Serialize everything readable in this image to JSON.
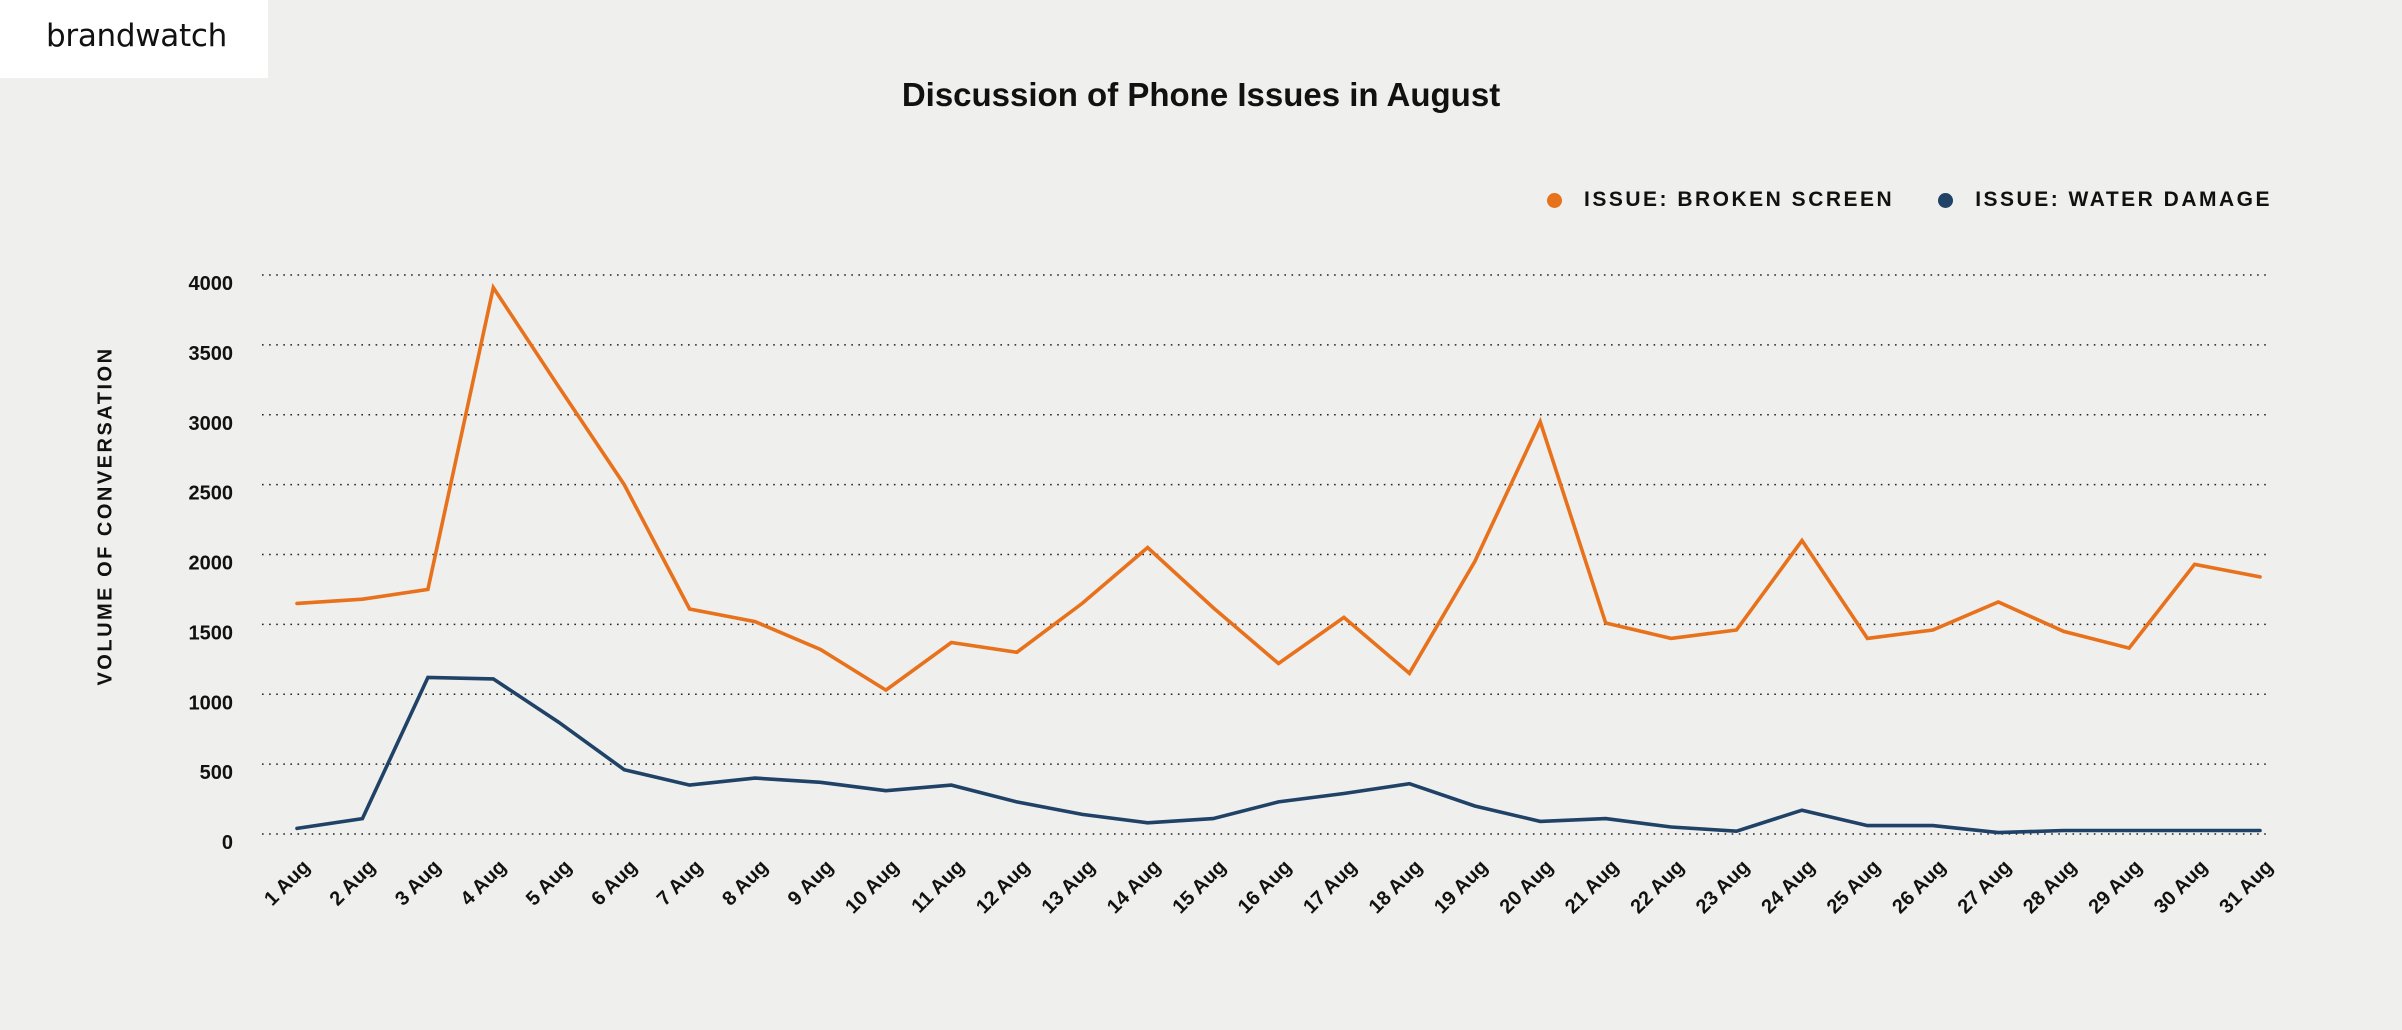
{
  "brand": {
    "logo_text": "brandwatch"
  },
  "chart_data": {
    "type": "line",
    "title": "Discussion of Phone Issues in August",
    "xlabel": "",
    "ylabel": "VOLUME OF CONVERSATION",
    "ylim": [
      0,
      4000
    ],
    "yticks": [
      0,
      500,
      1000,
      1500,
      2000,
      2500,
      3000,
      3500,
      4000
    ],
    "grid": "horizontal-dotted",
    "legend_position": "top-right",
    "categories": [
      "1 Aug",
      "2 Aug",
      "3 Aug",
      "4 Aug",
      "5 Aug",
      "6 Aug",
      "7 Aug",
      "8 Aug",
      "9 Aug",
      "10 Aug",
      "11 Aug",
      "12 Aug",
      "13 Aug",
      "14 Aug",
      "15 Aug",
      "16 Aug",
      "17 Aug",
      "18 Aug",
      "19 Aug",
      "20 Aug",
      "21 Aug",
      "22 Aug",
      "23 Aug",
      "24 Aug",
      "25 Aug",
      "26 Aug",
      "27 Aug",
      "28 Aug",
      "29 Aug",
      "30 Aug",
      "31 Aug"
    ],
    "series": [
      {
        "name": "ISSUE: BROKEN SCREEN",
        "color": "#e8711c",
        "values": [
          1650,
          1680,
          1750,
          3910,
          3200,
          2500,
          1610,
          1520,
          1320,
          1030,
          1370,
          1300,
          1650,
          2050,
          1620,
          1220,
          1550,
          1150,
          1950,
          2950,
          1510,
          1400,
          1460,
          2100,
          1400,
          1460,
          1660,
          1450,
          1330,
          1930,
          1840
        ]
      },
      {
        "name": "ISSUE: WATER DAMAGE",
        "color": "#1f4266",
        "values": [
          40,
          110,
          1120,
          1110,
          800,
          460,
          350,
          400,
          370,
          310,
          350,
          230,
          140,
          80,
          110,
          230,
          290,
          360,
          200,
          90,
          110,
          50,
          20,
          170,
          60,
          60,
          10,
          25,
          25,
          25,
          25
        ]
      }
    ]
  }
}
